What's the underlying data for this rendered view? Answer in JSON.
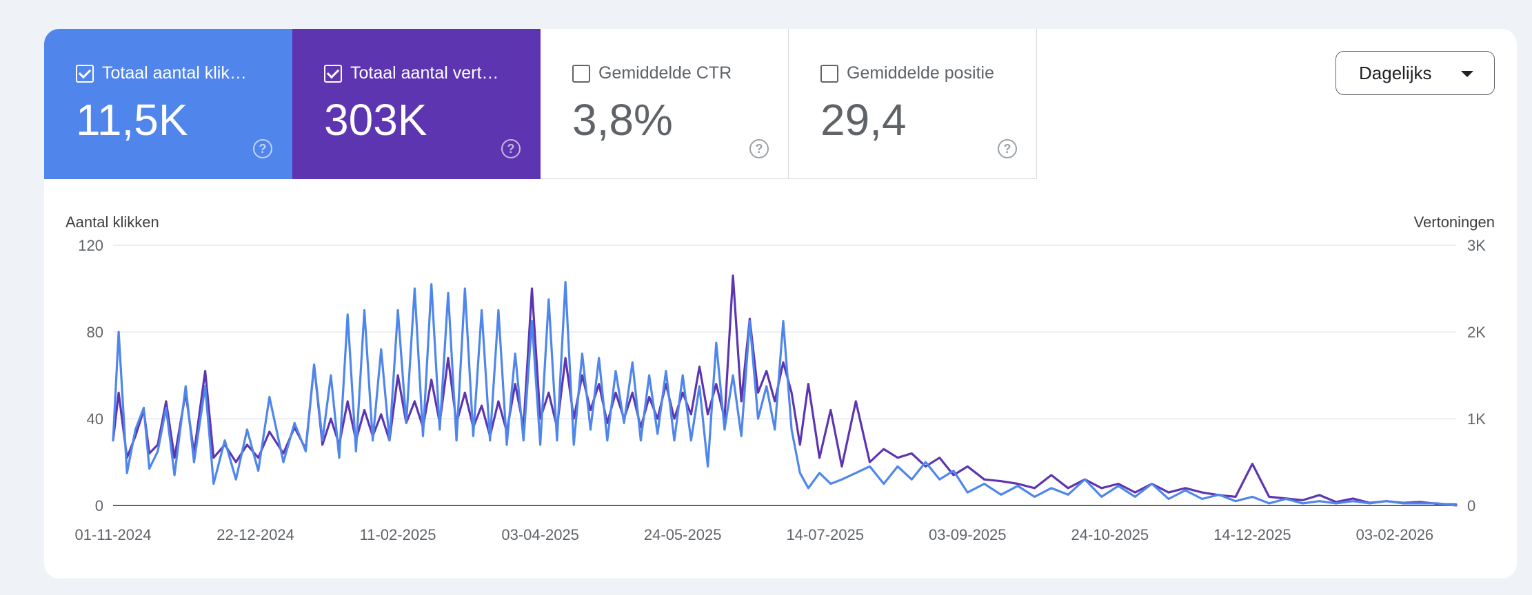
{
  "tiles": [
    {
      "label": "Totaal aantal klik…",
      "value": "11,5K",
      "checked": true,
      "color": "#5085ec"
    },
    {
      "label": "Totaal aantal vert…",
      "value": "303K",
      "checked": true,
      "color": "#5e35b1"
    },
    {
      "label": "Gemiddelde CTR",
      "value": "3,8%",
      "checked": false
    },
    {
      "label": "Gemiddelde positie",
      "value": "29,4",
      "checked": false
    }
  ],
  "dropdown": {
    "label": "Dagelijks",
    "icon": "caret-down-icon"
  },
  "help_icon": "question-circle-icon",
  "chart_data": {
    "type": "line",
    "ylabel_left": "Aantal klikken",
    "ylabel_right": "Vertoningen",
    "y_left_ticks": [
      "0",
      "40",
      "80",
      "120"
    ],
    "y_right_ticks": [
      "0",
      "1K",
      "2K",
      "3K"
    ],
    "ylim_left": [
      0,
      120
    ],
    "ylim_right": [
      0,
      3000
    ],
    "x_ticks": [
      "01-11-2024",
      "22-12-2024",
      "11-02-2025",
      "03-04-2025",
      "24-05-2025",
      "14-07-2025",
      "03-09-2025",
      "24-10-2025",
      "14-12-2025",
      "03-02-2026"
    ],
    "x_range": [
      "01-11-2024",
      "25-02-2026"
    ],
    "grid": true,
    "series": [
      {
        "name": "Totaal aantal klikken",
        "axis": "left",
        "color": "#4f86ec",
        "points": [
          [
            "01-11-2024",
            30
          ],
          [
            "03-11-2024",
            80
          ],
          [
            "06-11-2024",
            15
          ],
          [
            "09-11-2024",
            35
          ],
          [
            "12-11-2024",
            45
          ],
          [
            "14-11-2024",
            17
          ],
          [
            "17-11-2024",
            25
          ],
          [
            "20-11-2024",
            45
          ],
          [
            "23-11-2024",
            14
          ],
          [
            "27-11-2024",
            55
          ],
          [
            "30-11-2024",
            20
          ],
          [
            "04-12-2024",
            55
          ],
          [
            "07-12-2024",
            10
          ],
          [
            "11-12-2024",
            30
          ],
          [
            "15-12-2024",
            12
          ],
          [
            "19-12-2024",
            35
          ],
          [
            "23-12-2024",
            16
          ],
          [
            "27-12-2024",
            50
          ],
          [
            "01-01-2025",
            20
          ],
          [
            "05-01-2025",
            38
          ],
          [
            "09-01-2025",
            25
          ],
          [
            "12-01-2025",
            65
          ],
          [
            "15-01-2025",
            30
          ],
          [
            "18-01-2025",
            60
          ],
          [
            "21-01-2025",
            22
          ],
          [
            "24-01-2025",
            88
          ],
          [
            "27-01-2025",
            25
          ],
          [
            "30-01-2025",
            90
          ],
          [
            "02-02-2025",
            30
          ],
          [
            "05-02-2025",
            72
          ],
          [
            "08-02-2025",
            30
          ],
          [
            "11-02-2025",
            90
          ],
          [
            "14-02-2025",
            38
          ],
          [
            "17-02-2025",
            100
          ],
          [
            "20-02-2025",
            32
          ],
          [
            "23-02-2025",
            102
          ],
          [
            "26-02-2025",
            35
          ],
          [
            "01-03-2025",
            98
          ],
          [
            "04-03-2025",
            30
          ],
          [
            "07-03-2025",
            100
          ],
          [
            "10-03-2025",
            32
          ],
          [
            "13-03-2025",
            90
          ],
          [
            "16-03-2025",
            30
          ],
          [
            "19-03-2025",
            90
          ],
          [
            "22-03-2025",
            28
          ],
          [
            "25-03-2025",
            70
          ],
          [
            "28-03-2025",
            30
          ],
          [
            "31-03-2025",
            85
          ],
          [
            "03-04-2025",
            28
          ],
          [
            "06-04-2025",
            95
          ],
          [
            "09-04-2025",
            30
          ],
          [
            "12-04-2025",
            103
          ],
          [
            "15-04-2025",
            28
          ],
          [
            "18-04-2025",
            70
          ],
          [
            "21-04-2025",
            35
          ],
          [
            "24-04-2025",
            68
          ],
          [
            "27-04-2025",
            30
          ],
          [
            "30-04-2025",
            62
          ],
          [
            "03-05-2025",
            38
          ],
          [
            "06-05-2025",
            66
          ],
          [
            "09-05-2025",
            30
          ],
          [
            "12-05-2025",
            60
          ],
          [
            "15-05-2025",
            33
          ],
          [
            "18-05-2025",
            62
          ],
          [
            "21-05-2025",
            30
          ],
          [
            "24-05-2025",
            60
          ],
          [
            "27-05-2025",
            30
          ],
          [
            "30-05-2025",
            55
          ],
          [
            "02-06-2025",
            18
          ],
          [
            "05-06-2025",
            75
          ],
          [
            "08-06-2025",
            35
          ],
          [
            "11-06-2025",
            60
          ],
          [
            "14-06-2025",
            32
          ],
          [
            "17-06-2025",
            85
          ],
          [
            "20-06-2025",
            40
          ],
          [
            "23-06-2025",
            55
          ],
          [
            "26-06-2025",
            35
          ],
          [
            "29-06-2025",
            85
          ],
          [
            "02-07-2025",
            35
          ],
          [
            "05-07-2025",
            15
          ],
          [
            "08-07-2025",
            8
          ],
          [
            "12-07-2025",
            15
          ],
          [
            "16-07-2025",
            10
          ],
          [
            "20-07-2025",
            12
          ],
          [
            "25-07-2025",
            15
          ],
          [
            "30-07-2025",
            18
          ],
          [
            "04-08-2025",
            10
          ],
          [
            "09-08-2025",
            18
          ],
          [
            "14-08-2025",
            12
          ],
          [
            "19-08-2025",
            20
          ],
          [
            "24-08-2025",
            12
          ],
          [
            "29-08-2025",
            16
          ],
          [
            "03-09-2025",
            6
          ],
          [
            "09-09-2025",
            10
          ],
          [
            "15-09-2025",
            5
          ],
          [
            "21-09-2025",
            9
          ],
          [
            "27-09-2025",
            4
          ],
          [
            "03-10-2025",
            8
          ],
          [
            "09-10-2025",
            5
          ],
          [
            "15-10-2025",
            12
          ],
          [
            "21-10-2025",
            4
          ],
          [
            "27-10-2025",
            9
          ],
          [
            "02-11-2025",
            4
          ],
          [
            "08-11-2025",
            10
          ],
          [
            "14-11-2025",
            3
          ],
          [
            "20-11-2025",
            7
          ],
          [
            "26-11-2025",
            3
          ],
          [
            "02-12-2025",
            5
          ],
          [
            "08-12-2025",
            2
          ],
          [
            "14-12-2025",
            4
          ],
          [
            "20-12-2025",
            1
          ],
          [
            "26-12-2025",
            3
          ],
          [
            "01-01-2026",
            1
          ],
          [
            "07-01-2026",
            2
          ],
          [
            "13-01-2026",
            1
          ],
          [
            "19-01-2026",
            2
          ],
          [
            "25-01-2026",
            1
          ],
          [
            "31-01-2026",
            2
          ],
          [
            "06-02-2026",
            1
          ],
          [
            "12-02-2026",
            1
          ],
          [
            "18-02-2026",
            1
          ],
          [
            "25-02-2026",
            0
          ]
        ]
      },
      {
        "name": "Totaal aantal vertoningen",
        "axis": "right",
        "color": "#5e35b1",
        "points": [
          [
            "01-11-2024",
            750
          ],
          [
            "03-11-2024",
            1300
          ],
          [
            "06-11-2024",
            550
          ],
          [
            "09-11-2024",
            800
          ],
          [
            "12-11-2024",
            1100
          ],
          [
            "14-11-2024",
            600
          ],
          [
            "17-11-2024",
            700
          ],
          [
            "20-11-2024",
            1200
          ],
          [
            "23-11-2024",
            550
          ],
          [
            "27-11-2024",
            1300
          ],
          [
            "30-11-2024",
            600
          ],
          [
            "04-12-2024",
            1550
          ],
          [
            "07-12-2024",
            550
          ],
          [
            "11-12-2024",
            700
          ],
          [
            "15-12-2024",
            500
          ],
          [
            "19-12-2024",
            700
          ],
          [
            "23-12-2024",
            550
          ],
          [
            "27-12-2024",
            850
          ],
          [
            "01-01-2025",
            600
          ],
          [
            "05-01-2025",
            900
          ],
          [
            "09-01-2025",
            650
          ],
          [
            "12-01-2025",
            1620
          ],
          [
            "15-01-2025",
            700
          ],
          [
            "18-01-2025",
            1000
          ],
          [
            "21-01-2025",
            700
          ],
          [
            "24-01-2025",
            1200
          ],
          [
            "27-01-2025",
            750
          ],
          [
            "30-01-2025",
            1100
          ],
          [
            "02-02-2025",
            800
          ],
          [
            "05-02-2025",
            1050
          ],
          [
            "08-02-2025",
            750
          ],
          [
            "11-02-2025",
            1500
          ],
          [
            "14-02-2025",
            950
          ],
          [
            "17-02-2025",
            1200
          ],
          [
            "20-02-2025",
            900
          ],
          [
            "23-02-2025",
            1450
          ],
          [
            "26-02-2025",
            950
          ],
          [
            "01-03-2025",
            1700
          ],
          [
            "04-03-2025",
            950
          ],
          [
            "07-03-2025",
            1300
          ],
          [
            "10-03-2025",
            900
          ],
          [
            "13-03-2025",
            1150
          ],
          [
            "16-03-2025",
            800
          ],
          [
            "19-03-2025",
            1200
          ],
          [
            "22-03-2025",
            850
          ],
          [
            "25-03-2025",
            1400
          ],
          [
            "28-03-2025",
            900
          ],
          [
            "31-03-2025",
            2500
          ],
          [
            "03-04-2025",
            1000
          ],
          [
            "06-04-2025",
            1300
          ],
          [
            "09-04-2025",
            900
          ],
          [
            "12-04-2025",
            1700
          ],
          [
            "15-04-2025",
            1000
          ],
          [
            "18-04-2025",
            1500
          ],
          [
            "21-04-2025",
            1100
          ],
          [
            "24-04-2025",
            1400
          ],
          [
            "27-04-2025",
            950
          ],
          [
            "30-04-2025",
            1300
          ],
          [
            "03-05-2025",
            1000
          ],
          [
            "06-05-2025",
            1300
          ],
          [
            "09-05-2025",
            900
          ],
          [
            "12-05-2025",
            1250
          ],
          [
            "15-05-2025",
            1000
          ],
          [
            "18-05-2025",
            1400
          ],
          [
            "21-05-2025",
            1000
          ],
          [
            "24-05-2025",
            1300
          ],
          [
            "27-05-2025",
            1050
          ],
          [
            "30-05-2025",
            1600
          ],
          [
            "02-06-2025",
            1050
          ],
          [
            "05-06-2025",
            1400
          ],
          [
            "08-06-2025",
            1000
          ],
          [
            "11-06-2025",
            2650
          ],
          [
            "14-06-2025",
            1200
          ],
          [
            "17-06-2025",
            2150
          ],
          [
            "20-06-2025",
            1300
          ],
          [
            "23-06-2025",
            1550
          ],
          [
            "26-06-2025",
            1200
          ],
          [
            "29-06-2025",
            1650
          ],
          [
            "02-07-2025",
            1300
          ],
          [
            "05-07-2025",
            700
          ],
          [
            "08-07-2025",
            1400
          ],
          [
            "12-07-2025",
            550
          ],
          [
            "16-07-2025",
            1100
          ],
          [
            "20-07-2025",
            450
          ],
          [
            "25-07-2025",
            1200
          ],
          [
            "30-07-2025",
            500
          ],
          [
            "04-08-2025",
            650
          ],
          [
            "09-08-2025",
            550
          ],
          [
            "14-08-2025",
            600
          ],
          [
            "19-08-2025",
            450
          ],
          [
            "24-08-2025",
            550
          ],
          [
            "29-08-2025",
            350
          ],
          [
            "03-09-2025",
            450
          ],
          [
            "09-09-2025",
            300
          ],
          [
            "15-09-2025",
            280
          ],
          [
            "21-09-2025",
            250
          ],
          [
            "27-09-2025",
            200
          ],
          [
            "03-10-2025",
            350
          ],
          [
            "09-10-2025",
            200
          ],
          [
            "15-10-2025",
            300
          ],
          [
            "21-10-2025",
            200
          ],
          [
            "27-10-2025",
            250
          ],
          [
            "02-11-2025",
            150
          ],
          [
            "08-11-2025",
            250
          ],
          [
            "14-11-2025",
            150
          ],
          [
            "20-11-2025",
            200
          ],
          [
            "26-11-2025",
            150
          ],
          [
            "02-12-2025",
            120
          ],
          [
            "08-12-2025",
            100
          ],
          [
            "14-12-2025",
            480
          ],
          [
            "20-12-2025",
            100
          ],
          [
            "26-12-2025",
            80
          ],
          [
            "01-01-2026",
            60
          ],
          [
            "07-01-2026",
            120
          ],
          [
            "13-01-2026",
            40
          ],
          [
            "19-01-2026",
            80
          ],
          [
            "25-01-2026",
            30
          ],
          [
            "31-01-2026",
            50
          ],
          [
            "06-02-2026",
            30
          ],
          [
            "12-02-2026",
            40
          ],
          [
            "18-02-2026",
            20
          ],
          [
            "25-02-2026",
            10
          ]
        ]
      }
    ]
  }
}
